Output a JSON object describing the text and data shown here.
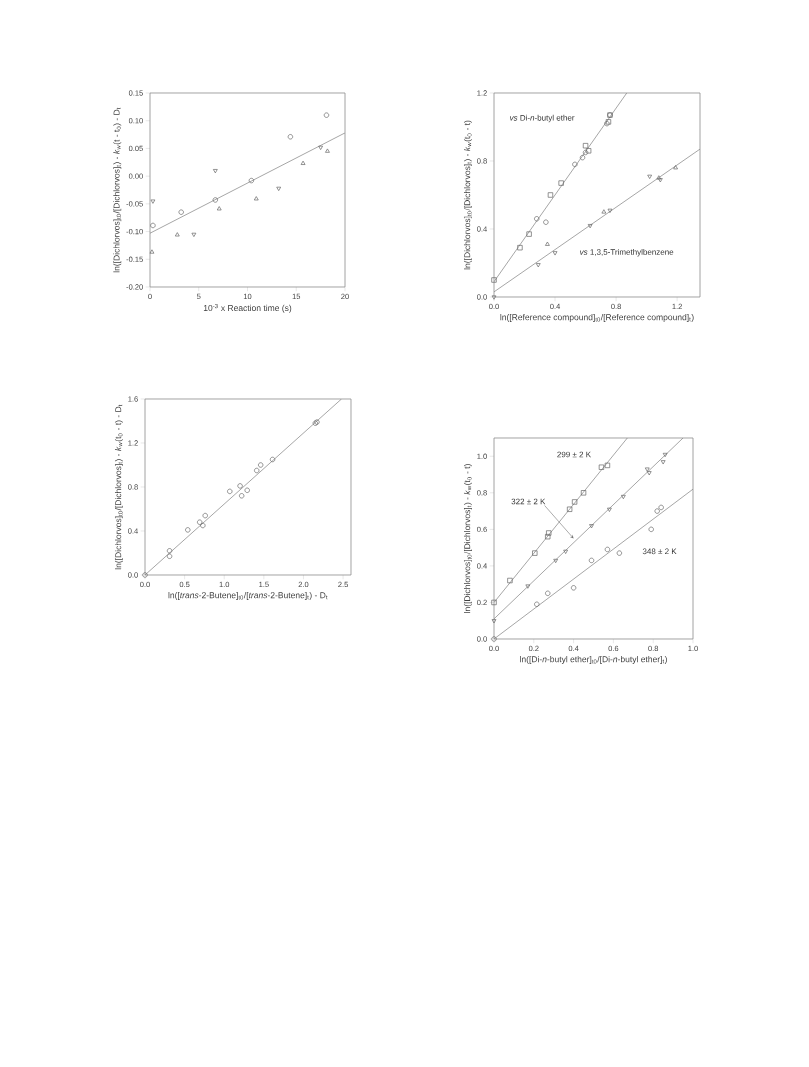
{
  "chart_data": [
    {
      "type": "scatter",
      "xlabel": "10$^{-3}$ x Reaction time (s)",
      "ylabel": "ln([Dichlorvos]$_{t0}$/[Dichlorvos]$_{t}$) - *k*$_{w}$(t - t$_{0}$) - D$_{t}$",
      "xlim": [
        0,
        20
      ],
      "ylim": [
        -0.2,
        0.15
      ],
      "xticks": [
        0,
        5,
        10,
        15,
        20
      ],
      "yticks": [
        {
          "value": -0.2,
          "label": "-0.20"
        },
        -0.15,
        {
          "value": -0.1,
          "label": "-0.10"
        },
        -0.05,
        {
          "value": 0,
          "label": "0.00"
        },
        0.05,
        {
          "value": 0.1,
          "label": "0.10"
        },
        0.15
      ],
      "grid": false,
      "series": [
        {
          "color": "#666666",
          "marker": "circle",
          "x": [
            0.3,
            3.2,
            6.7,
            10.4,
            14.4,
            18.1
          ],
          "values": [
            -0.089,
            -0.065,
            -0.043,
            -0.008,
            0.071,
            0.11
          ]
        },
        {
          "color": "#666666",
          "marker": "triangle-down",
          "x": [
            0.3,
            4.5,
            6.7,
            13.2,
            17.5
          ],
          "values": [
            -0.045,
            -0.105,
            0.01,
            -0.022,
            0.052
          ]
        },
        {
          "color": "#666666",
          "marker": "triangle",
          "x": [
            0.2,
            2.8,
            7.1,
            10.9,
            15.7,
            18.2
          ],
          "values": [
            -0.137,
            -0.106,
            -0.059,
            -0.041,
            0.023,
            0.045
          ]
        },
        {
          "type": "line",
          "color": "#808080",
          "marker": "none",
          "x": [
            0,
            20
          ],
          "values": [
            -0.103,
            0.078
          ]
        }
      ]
    },
    {
      "type": "scatter",
      "xlabel": "ln([Reference compound]$_{t0}$/[Reference compound]$_{t}$)",
      "ylabel": "ln([Dichlorvos]$_{t0}$/[Dichlorvos]$_{t}$) - *k*$_{w}$(t$_{0}$ - t)",
      "xlim": [
        0,
        1.35
      ],
      "ylim": [
        0,
        1.2
      ],
      "xticks": [
        {
          "value": 0,
          "label": "0.0"
        },
        0.4,
        0.8,
        1.2
      ],
      "yticks": [
        {
          "value": 0,
          "label": "0.0"
        },
        0.4,
        0.8,
        1.2
      ],
      "grid": false,
      "annotations": [
        "*vs*  Di-*n*-butyl ether",
        "*vs*  1,3,5-Trimethylbenzene"
      ],
      "series": [
        {
          "color": "#666666",
          "marker": "square",
          "x": [
            0,
            0.17,
            0.23,
            0.37,
            0.44,
            0.6,
            0.62,
            0.75,
            0.76
          ],
          "values": [
            0.1,
            0.29,
            0.37,
            0.6,
            0.67,
            0.89,
            0.86,
            1.03,
            1.07
          ]
        },
        {
          "color": "#666666",
          "marker": "circle",
          "x": [
            0.28,
            0.34,
            0.53,
            0.58,
            0.6,
            0.74,
            0.76
          ],
          "values": [
            0.46,
            0.44,
            0.78,
            0.82,
            0.85,
            1.02,
            1.07
          ]
        },
        {
          "color": "#666666",
          "marker": "triangle-down",
          "x": [
            0,
            0.29,
            0.4,
            0.63,
            0.76,
            1.02,
            1.09
          ],
          "values": [
            0,
            0.19,
            0.26,
            0.42,
            0.51,
            0.71,
            0.69
          ]
        },
        {
          "color": "#666666",
          "marker": "triangle",
          "x": [
            0.35,
            0.72,
            1.08,
            1.19
          ],
          "values": [
            0.31,
            0.5,
            0.7,
            0.76
          ]
        },
        {
          "type": "line",
          "color": "#808080",
          "marker": "none",
          "x": [
            0,
            0.87
          ],
          "values": [
            0.09,
            1.2
          ]
        },
        {
          "type": "line",
          "color": "#808080",
          "marker": "none",
          "x": [
            0,
            1.35
          ],
          "values": [
            0.03,
            0.87
          ]
        }
      ]
    },
    {
      "type": "scatter",
      "xlabel": "ln([*trans*-2-Butene]$_{t0}$/[*trans*-2-Butene]$_{t}$) - D$_{t}$",
      "ylabel": "ln([Dichlorvos]$_{t0}$/[Dichlorvos]$_{t}$) - *k*$_{w}$(t$_{0}$ - t) - D$_{t}$",
      "xlim": [
        0,
        2.6
      ],
      "ylim": [
        0,
        1.6
      ],
      "xticks": [
        {
          "value": 0,
          "label": "0.0"
        },
        0.5,
        {
          "value": 1,
          "label": "1.0"
        },
        1.5,
        {
          "value": 2,
          "label": "2.0"
        },
        2.5
      ],
      "yticks": [
        {
          "value": 0,
          "label": "0.0"
        },
        0.4,
        0.8,
        1.2,
        1.6
      ],
      "grid": false,
      "series": [
        {
          "color": "#666666",
          "marker": "circle",
          "x": [
            0,
            0.31,
            0.31,
            0.54,
            0.69,
            0.73,
            0.76,
            1.07,
            1.2,
            1.22,
            1.29,
            1.41,
            1.46,
            1.61,
            2.15,
            2.17
          ],
          "values": [
            0,
            0.22,
            0.17,
            0.41,
            0.48,
            0.45,
            0.54,
            0.76,
            0.81,
            0.72,
            0.77,
            0.95,
            1.0,
            1.05,
            1.38,
            1.39
          ]
        },
        {
          "type": "line",
          "color": "#808080",
          "marker": "none",
          "x": [
            0,
            2.48
          ],
          "values": [
            0,
            1.6
          ]
        }
      ]
    },
    {
      "type": "scatter",
      "xlabel": "ln([Di-*n*-butyl ether]$_{t0}$/[Di-*n*-butyl ether]$_{t}$)",
      "ylabel": "ln([Dichlorvos]$_{t0}$/[Dichlorvos]$_{t}$) - *k*$_{w}$(t$_{0}$ - t)",
      "xlim": [
        0,
        1
      ],
      "ylim": [
        0,
        1.1
      ],
      "xticks": [
        {
          "value": 0,
          "label": "0.0"
        },
        0.2,
        0.4,
        0.6,
        0.8,
        {
          "value": 1,
          "label": "1.0"
        }
      ],
      "yticks": [
        {
          "value": 0,
          "label": "0.0"
        },
        0.2,
        0.4,
        0.6,
        0.8,
        {
          "value": 1,
          "label": "1.0"
        }
      ],
      "grid": false,
      "annotations": [
        "299 ± 2 K",
        "322 ± 2 K",
        "348 ± 2 K"
      ],
      "series": [
        {
          "color": "#666666",
          "marker": "square",
          "x": [
            0,
            0.08,
            0.205,
            0.27,
            0.275,
            0.38,
            0.405,
            0.45,
            0.54,
            0.57
          ],
          "values": [
            0.2,
            0.32,
            0.47,
            0.56,
            0.58,
            0.71,
            0.75,
            0.8,
            0.94,
            0.95
          ]
        },
        {
          "color": "#666666",
          "marker": "triangle-down",
          "x": [
            0,
            0.17,
            0.31,
            0.36,
            0.49,
            0.58,
            0.65,
            0.77,
            0.78,
            0.85,
            0.86
          ],
          "values": [
            0.1,
            0.29,
            0.43,
            0.48,
            0.62,
            0.71,
            0.78,
            0.93,
            0.91,
            0.97,
            1.01
          ]
        },
        {
          "color": "#666666",
          "marker": "circle",
          "x": [
            0,
            0.215,
            0.27,
            0.4,
            0.49,
            0.57,
            0.63,
            0.79,
            0.82,
            0.84
          ],
          "values": [
            0,
            0.19,
            0.25,
            0.28,
            0.43,
            0.49,
            0.47,
            0.6,
            0.7,
            0.72
          ]
        },
        {
          "type": "line",
          "color": "#808080",
          "marker": "none",
          "x": [
            0,
            0.67
          ],
          "values": [
            0.2,
            1.1
          ]
        },
        {
          "type": "line",
          "color": "#808080",
          "marker": "none",
          "x": [
            0,
            0.95
          ],
          "values": [
            0.11,
            1.1
          ]
        },
        {
          "type": "line",
          "color": "#808080",
          "marker": "none",
          "x": [
            0,
            1
          ],
          "values": [
            0,
            0.82
          ]
        }
      ]
    }
  ]
}
